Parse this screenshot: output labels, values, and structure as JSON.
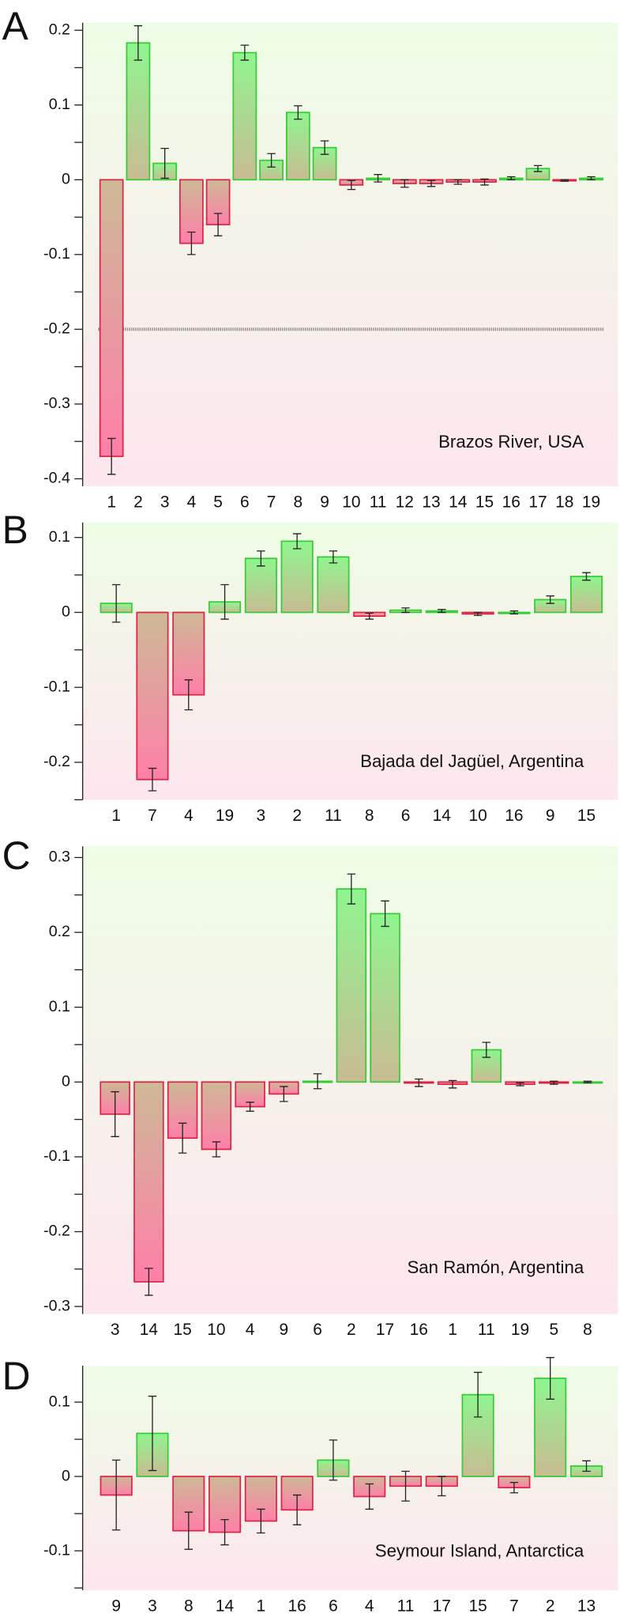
{
  "chart_data": [
    {
      "type": "bar",
      "panel": "A",
      "annotation": "Brazos River, USA",
      "categories": [
        "1",
        "2",
        "3",
        "4",
        "5",
        "6",
        "7",
        "8",
        "9",
        "10",
        "11",
        "12",
        "13",
        "14",
        "15",
        "16",
        "17",
        "18",
        "19"
      ],
      "values": [
        -0.37,
        0.183,
        0.022,
        -0.085,
        -0.06,
        0.17,
        0.026,
        0.09,
        0.043,
        -0.007,
        0.002,
        -0.005,
        -0.005,
        -0.003,
        -0.003,
        0.002,
        0.015,
        -0.001,
        0.002
      ],
      "errors": [
        0.024,
        0.023,
        0.02,
        0.015,
        0.015,
        0.01,
        0.009,
        0.009,
        0.009,
        0.006,
        0.005,
        0.005,
        0.004,
        0.003,
        0.004,
        0.002,
        0.004,
        0.001,
        0.002
      ],
      "ylim": [
        -0.41,
        0.21
      ],
      "yticks": [
        -0.4,
        -0.3,
        -0.2,
        -0.1,
        0,
        0.1,
        0.2
      ],
      "yticks_minor": [
        -0.35,
        -0.25,
        -0.15,
        -0.05,
        0.05,
        0.15
      ],
      "positive_color": "#33cc33",
      "negative_color": "#dd2244"
    },
    {
      "type": "bar",
      "panel": "B",
      "annotation": "Bajada del Jagüel, Argentina",
      "categories": [
        "1",
        "7",
        "4",
        "19",
        "3",
        "2",
        "11",
        "8",
        "6",
        "14",
        "10",
        "16",
        "9",
        "15"
      ],
      "values": [
        0.012,
        -0.223,
        -0.11,
        0.014,
        0.072,
        0.095,
        0.074,
        -0.005,
        0.003,
        0.002,
        -0.002,
        0,
        0.017,
        0.048
      ],
      "errors": [
        0.025,
        0.015,
        0.02,
        0.023,
        0.01,
        0.01,
        0.008,
        0.004,
        0.003,
        0.002,
        0.002,
        0.002,
        0.005,
        0.005
      ],
      "ylim": [
        -0.25,
        0.12
      ],
      "yticks": [
        -0.2,
        -0.1,
        0,
        0.1
      ],
      "yticks_minor": [
        -0.25,
        -0.15,
        -0.05,
        0.05
      ],
      "positive_color": "#33cc33",
      "negative_color": "#dd2244"
    },
    {
      "type": "bar",
      "panel": "C",
      "annotation": "San Ramón, Argentina",
      "categories": [
        "3",
        "14",
        "15",
        "10",
        "4",
        "9",
        "6",
        "2",
        "17",
        "16",
        "1",
        "11",
        "19",
        "5",
        "8"
      ],
      "values": [
        -0.043,
        -0.267,
        -0.075,
        -0.09,
        -0.033,
        -0.016,
        0.001,
        0.258,
        0.225,
        -0.001,
        -0.003,
        0.043,
        -0.003,
        -0.001,
        0
      ],
      "errors": [
        0.03,
        0.018,
        0.02,
        0.01,
        0.006,
        0.01,
        0.01,
        0.02,
        0.017,
        0.005,
        0.005,
        0.01,
        0.002,
        0.002,
        0.001
      ],
      "ylim": [
        -0.31,
        0.315
      ],
      "yticks": [
        -0.3,
        -0.2,
        -0.1,
        0,
        0.1,
        0.2,
        0.3
      ],
      "yticks_minor": [
        -0.25,
        -0.15,
        -0.05,
        0.05,
        0.15,
        0.25
      ],
      "positive_color": "#33cc33",
      "negative_color": "#dd2244"
    },
    {
      "type": "bar",
      "panel": "D",
      "annotation": "Seymour Island, Antarctica",
      "categories": [
        "9",
        "3",
        "8",
        "14",
        "1",
        "16",
        "6",
        "4",
        "11",
        "17",
        "15",
        "7",
        "2",
        "13"
      ],
      "values": [
        -0.025,
        0.058,
        -0.073,
        -0.075,
        -0.06,
        -0.045,
        0.022,
        -0.027,
        -0.013,
        -0.013,
        0.11,
        -0.015,
        0.132,
        0.014
      ],
      "errors": [
        0.047,
        0.05,
        0.025,
        0.017,
        0.016,
        0.02,
        0.027,
        0.017,
        0.02,
        0.013,
        0.03,
        0.007,
        0.028,
        0.007
      ],
      "ylim": [
        -0.153,
        0.149
      ],
      "yticks": [
        -0.1,
        0,
        0.1
      ],
      "yticks_minor": [
        -0.15,
        -0.05,
        0.05
      ],
      "positive_color": "#33cc33",
      "negative_color": "#dd2244"
    }
  ]
}
